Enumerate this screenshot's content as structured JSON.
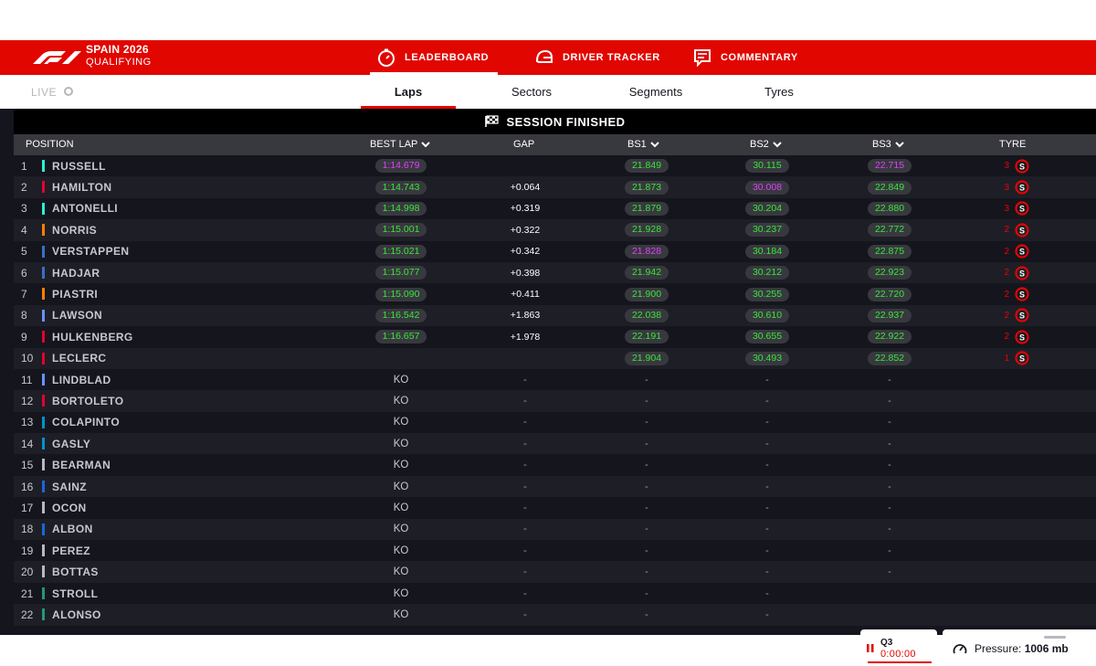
{
  "header": {
    "event_name": "SPAIN 2026",
    "session": "QUALIFYING",
    "tabs": [
      {
        "label": "LEADERBOARD",
        "icon": "timer-icon",
        "active": true
      },
      {
        "label": "DRIVER TRACKER",
        "icon": "helmet-icon",
        "active": false
      },
      {
        "label": "COMMENTARY",
        "icon": "commentary-icon",
        "active": false
      }
    ]
  },
  "subnav": {
    "live_label": "LIVE",
    "tabs": [
      {
        "label": "Laps",
        "active": true
      },
      {
        "label": "Sectors",
        "active": false
      },
      {
        "label": "Segments",
        "active": false
      },
      {
        "label": "Tyres",
        "active": false
      }
    ]
  },
  "table": {
    "status": "SESSION FINISHED",
    "columns": {
      "position": "POSITION",
      "best_lap": "BEST LAP",
      "gap": "GAP",
      "bs1": "BS1",
      "bs2": "BS2",
      "bs3": "BS3",
      "tyre": "TYRE"
    },
    "colors": {
      "personal_best": "#39e639",
      "overall_best": "#e040fb",
      "accent": "#e10600"
    },
    "rows": [
      {
        "pos": "1",
        "driver": "RUSSELL",
        "team_color": "#27f4d2",
        "best": "1:14.679",
        "best_c": "#e040fb",
        "gap": "",
        "bs1": "21.849",
        "bs1_c": "#39e639",
        "bs2": "30.115",
        "bs2_c": "#39e639",
        "bs3": "22.715",
        "bs3_c": "#e040fb",
        "tyre_laps": "3",
        "tyre": "S"
      },
      {
        "pos": "2",
        "driver": "HAMILTON",
        "team_color": "#e8002d",
        "best": "1:14.743",
        "best_c": "#39e639",
        "gap": "+0.064",
        "bs1": "21.873",
        "bs1_c": "#39e639",
        "bs2": "30.008",
        "bs2_c": "#e040fb",
        "bs3": "22.849",
        "bs3_c": "#39e639",
        "tyre_laps": "3",
        "tyre": "S"
      },
      {
        "pos": "3",
        "driver": "ANTONELLI",
        "team_color": "#27f4d2",
        "best": "1:14.998",
        "best_c": "#39e639",
        "gap": "+0.319",
        "bs1": "21.879",
        "bs1_c": "#39e639",
        "bs2": "30.204",
        "bs2_c": "#39e639",
        "bs3": "22.880",
        "bs3_c": "#39e639",
        "tyre_laps": "3",
        "tyre": "S"
      },
      {
        "pos": "4",
        "driver": "NORRIS",
        "team_color": "#ff8000",
        "best": "1:15.001",
        "best_c": "#39e639",
        "gap": "+0.322",
        "bs1": "21.928",
        "bs1_c": "#39e639",
        "bs2": "30.237",
        "bs2_c": "#39e639",
        "bs3": "22.772",
        "bs3_c": "#39e639",
        "tyre_laps": "2",
        "tyre": "S"
      },
      {
        "pos": "5",
        "driver": "VERSTAPPEN",
        "team_color": "#3671c6",
        "best": "1:15.021",
        "best_c": "#39e639",
        "gap": "+0.342",
        "bs1": "21.828",
        "bs1_c": "#e040fb",
        "bs2": "30.184",
        "bs2_c": "#39e639",
        "bs3": "22.875",
        "bs3_c": "#39e639",
        "tyre_laps": "2",
        "tyre": "S"
      },
      {
        "pos": "6",
        "driver": "HADJAR",
        "team_color": "#3671c6",
        "best": "1:15.077",
        "best_c": "#39e639",
        "gap": "+0.398",
        "bs1": "21.942",
        "bs1_c": "#39e639",
        "bs2": "30.212",
        "bs2_c": "#39e639",
        "bs3": "22.923",
        "bs3_c": "#39e639",
        "tyre_laps": "2",
        "tyre": "S"
      },
      {
        "pos": "7",
        "driver": "PIASTRI",
        "team_color": "#ff8000",
        "best": "1:15.090",
        "best_c": "#39e639",
        "gap": "+0.411",
        "bs1": "21.900",
        "bs1_c": "#39e639",
        "bs2": "30.255",
        "bs2_c": "#39e639",
        "bs3": "22.720",
        "bs3_c": "#39e639",
        "tyre_laps": "2",
        "tyre": "S"
      },
      {
        "pos": "8",
        "driver": "LAWSON",
        "team_color": "#6692ff",
        "best": "1:16.542",
        "best_c": "#39e639",
        "gap": "+1.863",
        "bs1": "22.038",
        "bs1_c": "#39e639",
        "bs2": "30.610",
        "bs2_c": "#39e639",
        "bs3": "22.937",
        "bs3_c": "#39e639",
        "tyre_laps": "2",
        "tyre": "S"
      },
      {
        "pos": "9",
        "driver": "HULKENBERG",
        "team_color": "#e8002d",
        "best": "1:16.657",
        "best_c": "#39e639",
        "gap": "+1.978",
        "bs1": "22.191",
        "bs1_c": "#39e639",
        "bs2": "30.655",
        "bs2_c": "#39e639",
        "bs3": "22.922",
        "bs3_c": "#39e639",
        "tyre_laps": "2",
        "tyre": "S"
      },
      {
        "pos": "10",
        "driver": "LECLERC",
        "team_color": "#e8002d",
        "best": "",
        "best_c": "#39e639",
        "gap": "",
        "bs1": "21.904",
        "bs1_c": "#39e639",
        "bs2": "30.493",
        "bs2_c": "#39e639",
        "bs3": "22.852",
        "bs3_c": "#39e639",
        "tyre_laps": "1",
        "tyre": "S"
      },
      {
        "pos": "11",
        "driver": "LINDBLAD",
        "team_color": "#6692ff",
        "best": "KO",
        "gap": "-",
        "bs1": "-",
        "bs2": "-",
        "bs3": "-",
        "tyre_laps": "",
        "tyre": ""
      },
      {
        "pos": "12",
        "driver": "BORTOLETO",
        "team_color": "#e8002d",
        "best": "KO",
        "gap": "-",
        "bs1": "-",
        "bs2": "-",
        "bs3": "-",
        "tyre_laps": "",
        "tyre": ""
      },
      {
        "pos": "13",
        "driver": "COLAPINTO",
        "team_color": "#0093cc",
        "best": "KO",
        "gap": "-",
        "bs1": "-",
        "bs2": "-",
        "bs3": "-",
        "tyre_laps": "",
        "tyre": ""
      },
      {
        "pos": "14",
        "driver": "GASLY",
        "team_color": "#0093cc",
        "best": "KO",
        "gap": "-",
        "bs1": "-",
        "bs2": "-",
        "bs3": "-",
        "tyre_laps": "",
        "tyre": ""
      },
      {
        "pos": "15",
        "driver": "BEARMAN",
        "team_color": "#b6babd",
        "best": "KO",
        "gap": "-",
        "bs1": "-",
        "bs2": "-",
        "bs3": "-",
        "tyre_laps": "",
        "tyre": ""
      },
      {
        "pos": "16",
        "driver": "SAINZ",
        "team_color": "#1868db",
        "best": "KO",
        "gap": "-",
        "bs1": "-",
        "bs2": "-",
        "bs3": "-",
        "tyre_laps": "",
        "tyre": ""
      },
      {
        "pos": "17",
        "driver": "OCON",
        "team_color": "#b6babd",
        "best": "KO",
        "gap": "-",
        "bs1": "-",
        "bs2": "-",
        "bs3": "-",
        "tyre_laps": "",
        "tyre": ""
      },
      {
        "pos": "18",
        "driver": "ALBON",
        "team_color": "#1868db",
        "best": "KO",
        "gap": "-",
        "bs1": "-",
        "bs2": "-",
        "bs3": "-",
        "tyre_laps": "",
        "tyre": ""
      },
      {
        "pos": "19",
        "driver": "PEREZ",
        "team_color": "#b6babd",
        "best": "KO",
        "gap": "-",
        "bs1": "-",
        "bs2": "-",
        "bs3": "-",
        "tyre_laps": "",
        "tyre": ""
      },
      {
        "pos": "20",
        "driver": "BOTTAS",
        "team_color": "#b6babd",
        "best": "KO",
        "gap": "-",
        "bs1": "-",
        "bs2": "-",
        "bs3": "-",
        "tyre_laps": "",
        "tyre": ""
      },
      {
        "pos": "21",
        "driver": "STROLL",
        "team_color": "#229971",
        "best": "KO",
        "gap": "-",
        "bs1": "-",
        "bs2": "-",
        "bs3": "",
        "tyre_laps": "",
        "tyre": ""
      },
      {
        "pos": "22",
        "driver": "ALONSO",
        "team_color": "#229971",
        "best": "KO",
        "gap": "-",
        "bs1": "-",
        "bs2": "-",
        "bs3": "",
        "tyre_laps": "",
        "tyre": ""
      }
    ]
  },
  "session_clock": {
    "label": "Q3",
    "time": "0:00:00"
  },
  "weather": {
    "label": "Pressure:",
    "value": "1006 mb"
  }
}
